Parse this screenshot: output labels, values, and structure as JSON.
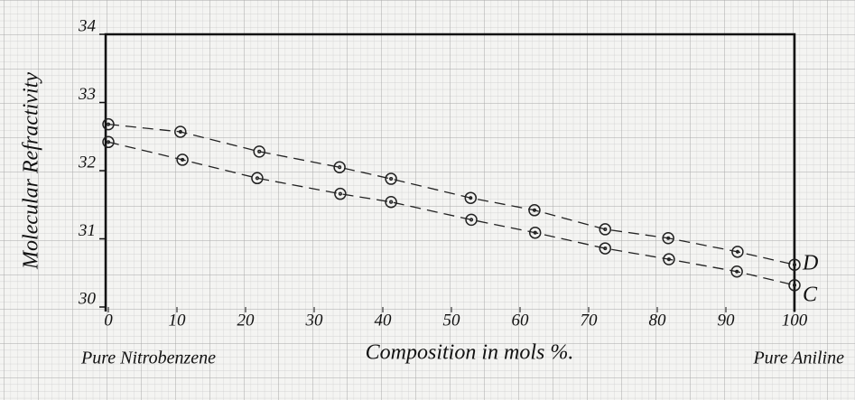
{
  "chart_data": {
    "type": "line",
    "xlabel": "Composition in mols %.",
    "ylabel": "Molecular Refractivity",
    "xlim": [
      0,
      100
    ],
    "xticks": [
      0,
      10,
      20,
      30,
      40,
      50,
      60,
      70,
      80,
      90,
      100
    ],
    "ylim": [
      30,
      34
    ],
    "yticks": [
      30,
      31,
      32,
      33,
      34
    ],
    "annotations": [
      "Pure Nitrobenzene",
      "Pure Aniline"
    ],
    "series": [
      {
        "name": "D",
        "color": "#222222",
        "x": [
          0,
          10.5,
          22,
          33.7,
          41.2,
          52.8,
          62.1,
          72.4,
          81.6,
          91.7,
          100
        ],
        "values": [
          32.68,
          32.57,
          32.28,
          32.05,
          31.88,
          31.6,
          31.42,
          31.14,
          31.01,
          30.81,
          30.62
        ]
      },
      {
        "name": "C",
        "color": "#222222",
        "x": [
          0,
          10.8,
          21.7,
          33.8,
          41.2,
          52.9,
          62.2,
          72.4,
          81.7,
          91.6,
          100
        ],
        "values": [
          32.42,
          32.16,
          31.89,
          31.66,
          31.54,
          31.28,
          31.09,
          30.86,
          30.7,
          30.52,
          30.32
        ]
      }
    ]
  }
}
